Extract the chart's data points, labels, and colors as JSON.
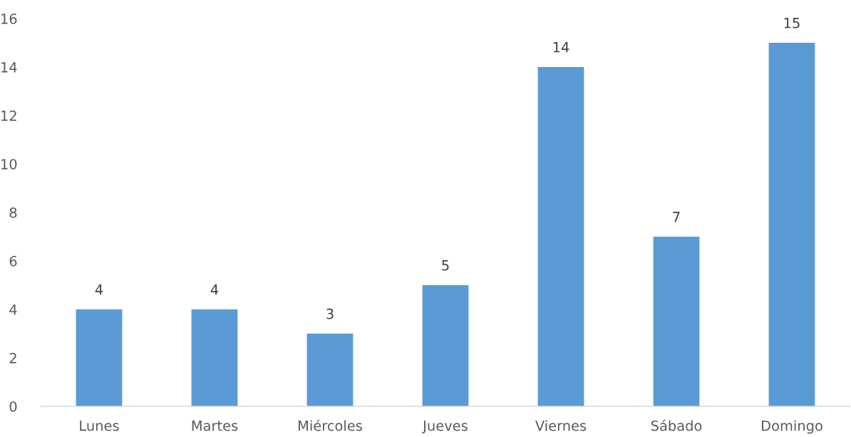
{
  "chart_data": {
    "type": "bar",
    "categories": [
      "Lunes",
      "Martes",
      "Miércoles",
      "Jueves",
      "Viernes",
      "Sábado",
      "Domingo"
    ],
    "values": [
      4,
      4,
      3,
      5,
      14,
      7,
      15
    ],
    "color": "#5b9bd5",
    "ylim": [
      0,
      16
    ],
    "yticks": [
      0,
      2,
      4,
      6,
      8,
      10,
      12,
      14,
      16
    ],
    "data_labels": true,
    "grid": false
  }
}
